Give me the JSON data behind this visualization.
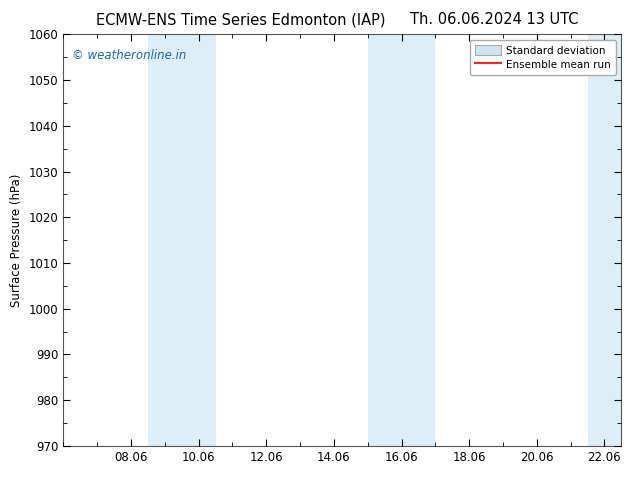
{
  "title_left": "ECMW-ENS Time Series Edmonton (IAP)",
  "title_right": "Th. 06.06.2024 13 UTC",
  "ylabel": "Surface Pressure (hPa)",
  "xlabel": "",
  "ylim": [
    970,
    1060
  ],
  "yticks": [
    970,
    980,
    990,
    1000,
    1010,
    1020,
    1030,
    1040,
    1050,
    1060
  ],
  "xtick_labels": [
    "08.06",
    "10.06",
    "12.06",
    "14.06",
    "16.06",
    "18.06",
    "20.06",
    "22.06"
  ],
  "xtick_positions": [
    2,
    4,
    6,
    8,
    10,
    12,
    14,
    16
  ],
  "xlim": [
    0.0,
    16.5
  ],
  "shaded_bands": [
    {
      "x_start": 2.5,
      "x_end": 4.5,
      "color": "#ddeef9"
    },
    {
      "x_start": 9.0,
      "x_end": 11.0,
      "color": "#ddeef9"
    },
    {
      "x_start": 15.5,
      "x_end": 16.5,
      "color": "#ddeef9"
    }
  ],
  "watermark_text": "© weatheronline.in",
  "watermark_color": "#1565c0",
  "bg_color": "#ffffff",
  "plot_bg_color": "#ffffff",
  "spine_color": "#555555",
  "legend_std_dev_color": "#d0e4f0",
  "legend_std_dev_edge": "#aaaaaa",
  "legend_mean_color": "#ff2222",
  "title_fontsize": 10.5,
  "tick_fontsize": 8.5,
  "ylabel_fontsize": 8.5,
  "watermark_fontsize": 8.5
}
